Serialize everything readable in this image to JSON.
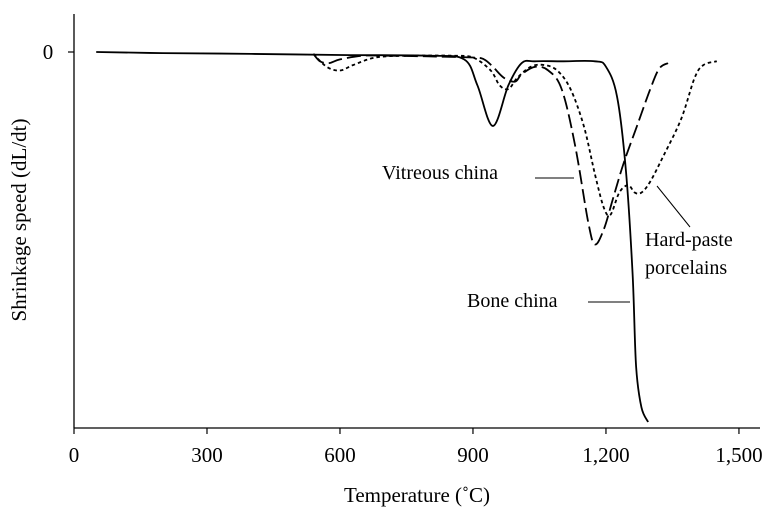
{
  "chart_data": {
    "type": "line",
    "xlabel": "Temperature (˚C)",
    "ylabel": "Shrinkage speed (dL/dt)",
    "xlim": [
      0,
      1550
    ],
    "ylim": [
      -1,
      0.03
    ],
    "x_ticks": [
      {
        "value": 0,
        "label": "0"
      },
      {
        "value": 300,
        "label": "300"
      },
      {
        "value": 600,
        "label": "600"
      },
      {
        "value": 900,
        "label": "900"
      },
      {
        "value": 1200,
        "label": "1,200"
      },
      {
        "value": 1500,
        "label": "1,500"
      }
    ],
    "y_ticks": [
      {
        "value": 0,
        "label": "0"
      }
    ],
    "grid": false,
    "series": [
      {
        "name": "Bone china",
        "style": "solid",
        "color": "#000000",
        "points": [
          [
            50,
            0
          ],
          [
            200,
            -0.003
          ],
          [
            400,
            -0.005
          ],
          [
            600,
            -0.008
          ],
          [
            800,
            -0.01
          ],
          [
            880,
            -0.02
          ],
          [
            910,
            -0.09
          ],
          [
            945,
            -0.2
          ],
          [
            980,
            -0.09
          ],
          [
            1010,
            -0.03
          ],
          [
            1040,
            -0.025
          ],
          [
            1100,
            -0.025
          ],
          [
            1175,
            -0.025
          ],
          [
            1200,
            -0.04
          ],
          [
            1225,
            -0.12
          ],
          [
            1245,
            -0.32
          ],
          [
            1260,
            -0.6
          ],
          [
            1268,
            -0.85
          ],
          [
            1280,
            -0.96
          ],
          [
            1295,
            -1.0
          ]
        ]
      },
      {
        "name": "Vitreous china",
        "style": "dashed",
        "color": "#000000",
        "points": [
          [
            540,
            -0.005
          ],
          [
            555,
            -0.025
          ],
          [
            575,
            -0.03
          ],
          [
            600,
            -0.02
          ],
          [
            650,
            -0.01
          ],
          [
            700,
            -0.01
          ],
          [
            800,
            -0.012
          ],
          [
            900,
            -0.015
          ],
          [
            925,
            -0.02
          ],
          [
            945,
            -0.04
          ],
          [
            970,
            -0.07
          ],
          [
            995,
            -0.08
          ],
          [
            1010,
            -0.06
          ],
          [
            1040,
            -0.04
          ],
          [
            1070,
            -0.05
          ],
          [
            1100,
            -0.1
          ],
          [
            1130,
            -0.25
          ],
          [
            1160,
            -0.46
          ],
          [
            1175,
            -0.52
          ],
          [
            1195,
            -0.48
          ],
          [
            1215,
            -0.4
          ],
          [
            1240,
            -0.3
          ],
          [
            1270,
            -0.2
          ],
          [
            1300,
            -0.1
          ],
          [
            1320,
            -0.045
          ],
          [
            1340,
            -0.03
          ]
        ]
      },
      {
        "name": "Hard-paste porcelains",
        "style": "dotted",
        "color": "#000000",
        "points": [
          [
            540,
            -0.005
          ],
          [
            570,
            -0.04
          ],
          [
            600,
            -0.05
          ],
          [
            630,
            -0.035
          ],
          [
            680,
            -0.015
          ],
          [
            750,
            -0.01
          ],
          [
            850,
            -0.01
          ],
          [
            900,
            -0.015
          ],
          [
            940,
            -0.05
          ],
          [
            960,
            -0.09
          ],
          [
            980,
            -0.1
          ],
          [
            1000,
            -0.07
          ],
          [
            1030,
            -0.04
          ],
          [
            1060,
            -0.035
          ],
          [
            1090,
            -0.05
          ],
          [
            1120,
            -0.1
          ],
          [
            1150,
            -0.2
          ],
          [
            1175,
            -0.33
          ],
          [
            1195,
            -0.42
          ],
          [
            1210,
            -0.44
          ],
          [
            1230,
            -0.38
          ],
          [
            1250,
            -0.36
          ],
          [
            1265,
            -0.38
          ],
          [
            1280,
            -0.38
          ],
          [
            1300,
            -0.35
          ],
          [
            1330,
            -0.28
          ],
          [
            1370,
            -0.18
          ],
          [
            1400,
            -0.07
          ],
          [
            1420,
            -0.035
          ],
          [
            1450,
            -0.025
          ]
        ]
      }
    ],
    "annotations": [
      {
        "text_lines": [
          "Vitreous china"
        ],
        "series": "Vitreous china"
      },
      {
        "text_lines": [
          "Hard-paste",
          "porcelains"
        ],
        "series": "Hard-paste porcelains"
      },
      {
        "text_lines": [
          "Bone china"
        ],
        "series": "Bone china"
      }
    ]
  }
}
